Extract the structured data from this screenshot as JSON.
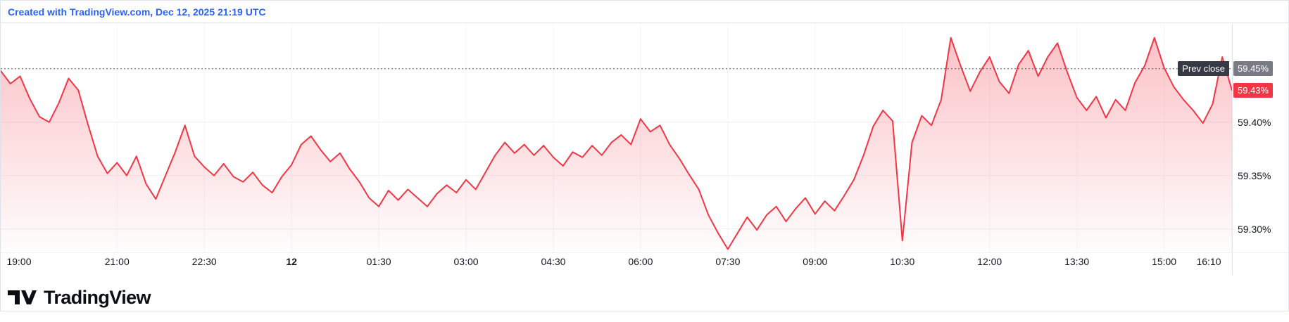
{
  "header": {
    "attribution": "Created with TradingView.com, Dec 12, 2025 21:19 UTC"
  },
  "footer": {
    "logo_text": "TradingView"
  },
  "chart_data": {
    "type": "area",
    "title": "",
    "unit": "%",
    "time_axis": {
      "start": "19:00",
      "end": "16:10",
      "step_minutes": 10,
      "total_minutes": 1270,
      "ticks": [
        {
          "label": "19:00",
          "t": 0
        },
        {
          "label": "21:00",
          "t": 120
        },
        {
          "label": "22:30",
          "t": 210
        },
        {
          "label": "12",
          "t": 300,
          "bold": true
        },
        {
          "label": "01:30",
          "t": 390
        },
        {
          "label": "03:00",
          "t": 480
        },
        {
          "label": "04:30",
          "t": 570
        },
        {
          "label": "06:00",
          "t": 660
        },
        {
          "label": "07:30",
          "t": 750
        },
        {
          "label": "09:00",
          "t": 840
        },
        {
          "label": "10:30",
          "t": 930
        },
        {
          "label": "12:00",
          "t": 1020
        },
        {
          "label": "13:30",
          "t": 1110
        },
        {
          "label": "15:00",
          "t": 1200
        },
        {
          "label": "16:10",
          "t": 1270
        }
      ]
    },
    "y_axis": {
      "min": 59.278,
      "max": 59.492,
      "ticks": [
        {
          "label": "59.45%",
          "v": 59.45,
          "style": "prev_close"
        },
        {
          "label": "59.40%",
          "v": 59.4
        },
        {
          "label": "59.35%",
          "v": 59.35
        },
        {
          "label": "59.30%",
          "v": 59.3
        }
      ]
    },
    "prev_close": {
      "label": "Prev close",
      "value": 59.45,
      "value_label": "59.45%"
    },
    "last": {
      "value": 59.43,
      "label": "59.43%"
    },
    "values": [
      59.448,
      59.436,
      59.443,
      59.422,
      59.405,
      59.4,
      59.418,
      59.441,
      59.43,
      59.398,
      59.368,
      59.352,
      59.362,
      59.35,
      59.368,
      59.342,
      59.328,
      59.35,
      59.372,
      59.397,
      59.368,
      59.358,
      59.35,
      59.361,
      59.349,
      59.344,
      59.353,
      59.341,
      59.334,
      59.349,
      59.36,
      59.379,
      59.387,
      59.374,
      59.363,
      59.371,
      59.356,
      59.344,
      59.329,
      59.321,
      59.336,
      59.327,
      59.337,
      59.329,
      59.321,
      59.333,
      59.341,
      59.334,
      59.346,
      59.337,
      59.353,
      59.369,
      59.381,
      59.371,
      59.379,
      59.369,
      59.378,
      59.367,
      59.359,
      59.372,
      59.367,
      59.378,
      59.369,
      59.381,
      59.388,
      59.379,
      59.403,
      59.391,
      59.397,
      59.379,
      59.366,
      59.351,
      59.337,
      59.313,
      59.296,
      59.281,
      59.296,
      59.311,
      59.299,
      59.313,
      59.321,
      59.307,
      59.319,
      59.329,
      59.314,
      59.326,
      59.317,
      59.331,
      59.346,
      59.369,
      59.396,
      59.411,
      59.401,
      59.289,
      59.381,
      59.406,
      59.397,
      59.421,
      59.479,
      59.453,
      59.429,
      59.447,
      59.461,
      59.438,
      59.427,
      59.454,
      59.467,
      59.443,
      59.461,
      59.474,
      59.447,
      59.423,
      59.411,
      59.424,
      59.404,
      59.421,
      59.411,
      59.437,
      59.453,
      59.479,
      59.451,
      59.433,
      59.421,
      59.411,
      59.399,
      59.417,
      59.461,
      59.43
    ],
    "colors": {
      "line": "#F23645",
      "fill_top": "rgba(242,54,69,0.30)",
      "fill_bottom": "rgba(242,54,69,0.01)",
      "grid": "#eef1f6",
      "vgrid": "#f2f4f8",
      "axis_text": "#131722",
      "prev_close_line": "#40444f",
      "prev_close_badge": "#363a45",
      "prev_close_value_badge": "#787b86",
      "last_badge": "#F23645",
      "attribution": "#2962FF",
      "divider": "#e0e3eb"
    }
  }
}
